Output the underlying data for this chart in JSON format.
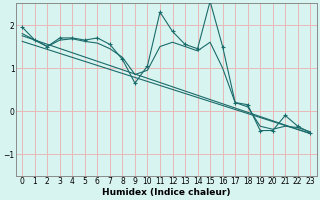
{
  "xlabel": "Humidex (Indice chaleur)",
  "bg_color": "#d8f4f0",
  "grid_color": "#e8b8b8",
  "line_color": "#1a6b6b",
  "spine_color": "#8a8a8a",
  "xlim": [
    -0.5,
    23.5
  ],
  "ylim": [
    -1.5,
    2.5
  ],
  "yticks": [
    -1,
    0,
    1,
    2
  ],
  "xticks": [
    0,
    1,
    2,
    3,
    4,
    5,
    6,
    7,
    8,
    9,
    10,
    11,
    12,
    13,
    14,
    15,
    16,
    17,
    18,
    19,
    20,
    21,
    22,
    23
  ],
  "data_x": [
    0,
    1,
    2,
    3,
    4,
    5,
    6,
    7,
    8,
    9,
    10,
    11,
    12,
    13,
    14,
    15,
    16,
    17,
    18,
    19,
    20,
    21,
    22,
    23
  ],
  "data_y_main": [
    1.95,
    1.65,
    1.5,
    1.7,
    1.7,
    1.65,
    1.7,
    1.55,
    1.2,
    0.65,
    1.05,
    2.3,
    1.85,
    1.55,
    1.45,
    2.55,
    1.5,
    0.2,
    0.15,
    -0.45,
    -0.45,
    -0.1,
    -0.35,
    -0.5
  ],
  "data_y_smooth": [
    1.8,
    1.65,
    1.5,
    1.65,
    1.68,
    1.62,
    1.58,
    1.45,
    1.25,
    0.85,
    0.95,
    1.5,
    1.6,
    1.5,
    1.4,
    1.6,
    1.0,
    0.2,
    0.1,
    -0.35,
    -0.42,
    -0.35,
    -0.38,
    -0.48
  ],
  "reg_x_start": 0,
  "reg_x_end": 23,
  "reg_y_start": 1.75,
  "reg_y_end": -0.52,
  "reg2_y_start": 1.62,
  "reg2_y_end": -0.52
}
